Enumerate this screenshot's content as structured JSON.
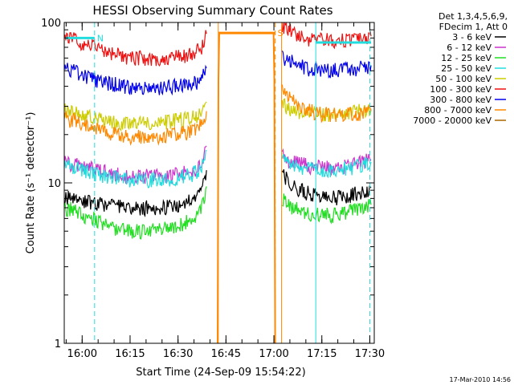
{
  "chart_data": {
    "type": "line",
    "title": "HESSI Observing Summary Count Rates",
    "xlabel": "Start Time (24-Sep-09 15:54:22)",
    "ylabel": "Count Rate (s⁻¹ detector⁻¹)",
    "yscale": "log",
    "ylim": [
      1,
      100
    ],
    "xlim_minutes": [
      0,
      97
    ],
    "x_ticks": [
      {
        "t": 5.6,
        "label": "16:00"
      },
      {
        "t": 20.6,
        "label": "16:15"
      },
      {
        "t": 35.6,
        "label": "16:30"
      },
      {
        "t": 50.6,
        "label": "16:45"
      },
      {
        "t": 65.6,
        "label": "17:00"
      },
      {
        "t": 80.6,
        "label": "17:15"
      },
      {
        "t": 95.6,
        "label": "17:30"
      }
    ],
    "y_ticks": [
      {
        "v": 1,
        "label": "1"
      },
      {
        "v": 10,
        "label": "10"
      },
      {
        "v": 100,
        "label": "100"
      }
    ],
    "legend": {
      "header": [
        "Det 1,3,4,5,6,9,",
        "FDecim 1, Att 0"
      ],
      "position": "top-right",
      "entries": [
        {
          "name": "3 - 6 keV",
          "color": "#000000"
        },
        {
          "name": "6 - 12 keV",
          "color": "#cc33cc"
        },
        {
          "name": "12 - 25 keV",
          "color": "#22dd22"
        },
        {
          "name": "25 - 50 keV",
          "color": "#22dddd"
        },
        {
          "name": "50 - 100 keV",
          "color": "#cccc00"
        },
        {
          "name": "100 - 300 keV",
          "color": "#ee1111"
        },
        {
          "name": "300 - 800 keV",
          "color": "#0000ee"
        },
        {
          "name": "800 - 7000 keV",
          "color": "#ff8800"
        },
        {
          "name": "7000 - 20000 keV",
          "color": "#aa6600"
        }
      ]
    },
    "series": [
      {
        "name": "3 - 6 keV",
        "color": "#000000",
        "segments": [
          {
            "x": [
              0,
              3,
              6,
              10,
              15,
              20,
              25,
              30,
              35,
              40,
              43,
              44.5
            ],
            "y": [
              8.2,
              8.0,
              7.8,
              7.5,
              7.2,
              7.0,
              7.0,
              7.0,
              7.2,
              7.8,
              9.0,
              12
            ]
          },
          {
            "x": [
              68.2,
              70,
              73,
              76,
              80,
              84,
              88,
              92,
              96
            ],
            "y": [
              12,
              10,
              9.3,
              8.7,
              8.3,
              8.1,
              8.2,
              8.7,
              9.3
            ]
          }
        ]
      },
      {
        "name": "6 - 12 keV",
        "color": "#cc33cc",
        "segments": [
          {
            "x": [
              0,
              3,
              6,
              10,
              15,
              20,
              25,
              30,
              35,
              40,
              43,
              44.5
            ],
            "y": [
              13.5,
              13,
              12.6,
              12,
              11.5,
              11,
              11,
              11,
              11.2,
              11.8,
              13,
              17
            ]
          },
          {
            "x": [
              68.2,
              70,
              73,
              76,
              80,
              84,
              88,
              92,
              96
            ],
            "y": [
              15,
              14,
              13.3,
              12.8,
              12.5,
              12.3,
              12.6,
              13.3,
              14
            ]
          }
        ]
      },
      {
        "name": "12 - 25 keV",
        "color": "#22dd22",
        "segments": [
          {
            "x": [
              0,
              3,
              6,
              10,
              15,
              20,
              25,
              30,
              35,
              40,
              43,
              44.5
            ],
            "y": [
              7.0,
              6.8,
              6.3,
              5.8,
              5.3,
              5.0,
              5.0,
              5.1,
              5.3,
              5.9,
              7.0,
              9.5
            ]
          },
          {
            "x": [
              68.2,
              70,
              73,
              76,
              80,
              84,
              88,
              92,
              96
            ],
            "y": [
              8.0,
              7.3,
              6.9,
              6.5,
              6.3,
              6.3,
              6.5,
              6.9,
              7.3
            ]
          }
        ]
      },
      {
        "name": "25 - 50 keV",
        "color": "#22dddd",
        "segments": [
          {
            "x": [
              0,
              3,
              6,
              10,
              15,
              20,
              25,
              30,
              35,
              40,
              43,
              44.5
            ],
            "y": [
              13,
              12.5,
              12,
              11.3,
              10.8,
              10.5,
              10.4,
              10.5,
              10.8,
              11.3,
              12.5,
              16
            ]
          },
          {
            "x": [
              68.2,
              70,
              73,
              76,
              80,
              84,
              88,
              92,
              96
            ],
            "y": [
              14,
              13.2,
              12.6,
              12.2,
              12.0,
              12.0,
              12.3,
              12.8,
              13.5
            ]
          }
        ]
      },
      {
        "name": "50 - 100 keV",
        "color": "#cccc00",
        "segments": [
          {
            "x": [
              0,
              3,
              6,
              10,
              15,
              20,
              25,
              30,
              35,
              40,
              43,
              44.5
            ],
            "y": [
              28,
              27.5,
              26.5,
              25,
              24,
              23.5,
              23.5,
              24,
              24.5,
              25.5,
              27,
              32
            ]
          },
          {
            "x": [
              68.2,
              70,
              73,
              76,
              80,
              84,
              88,
              92,
              96
            ],
            "y": [
              31,
              29,
              28,
              27,
              26.5,
              26.5,
              27,
              28,
              29
            ]
          }
        ]
      },
      {
        "name": "100 - 300 keV",
        "color": "#ee1111",
        "segments": [
          {
            "x": [
              0,
              3,
              6,
              10,
              15,
              20,
              25,
              30,
              35,
              40,
              43,
              44.5
            ],
            "y": [
              82,
              79,
              74,
              69,
              64,
              61,
              60,
              60,
              61,
              64,
              69,
              85
            ]
          },
          {
            "x": [
              68.2,
              70,
              73,
              76,
              80,
              84,
              88,
              92,
              96
            ],
            "y": [
              96,
              90,
              84,
              80,
              78,
              77,
              78,
              80,
              82
            ]
          }
        ]
      },
      {
        "name": "300 - 800 keV",
        "color": "#0000ee",
        "segments": [
          {
            "x": [
              0,
              3,
              6,
              10,
              15,
              20,
              25,
              30,
              35,
              40,
              43,
              44.5
            ],
            "y": [
              52,
              50,
              47,
              44,
              41.5,
              40,
              39.5,
              39.5,
              40,
              41.5,
              44,
              52
            ]
          },
          {
            "x": [
              68.2,
              70,
              73,
              76,
              80,
              84,
              88,
              92,
              96
            ],
            "y": [
              62,
              58,
              55,
              52,
              51,
              50.5,
              51,
              52,
              54
            ]
          }
        ]
      },
      {
        "name": "800 - 7000 keV",
        "color": "#ff8800",
        "segments": [
          {
            "x": [
              0,
              3,
              6,
              10,
              15,
              20,
              25,
              30,
              35,
              40,
              43,
              44.5
            ],
            "y": [
              25,
              24.5,
              23.5,
              22,
              20.5,
              19.5,
              19.5,
              19.5,
              20,
              21,
              23,
              28
            ]
          },
          {
            "x": [
              48,
              48.5,
              65.5,
              66
            ],
            "y": [
              1,
              86,
              86,
              1
            ]
          },
          {
            "x": [
              68.2,
              70,
              73,
              76,
              80,
              84,
              88,
              92,
              96
            ],
            "y": [
              37,
              34,
              31,
              28.5,
              27,
              26.5,
              26.5,
              27,
              28
            ]
          }
        ]
      }
    ],
    "vertical_markers": [
      {
        "t": 0,
        "color": "#22dddd",
        "style": "solid"
      },
      {
        "t": 9.5,
        "color": "#22dddd",
        "style": "dashed"
      },
      {
        "t": 48.2,
        "color": "#ff8800",
        "style": "solid"
      },
      {
        "t": 66.0,
        "color": "#ff8800",
        "style": "dashed"
      },
      {
        "t": 68.0,
        "color": "#ff8800",
        "style": "solid"
      },
      {
        "t": 78.7,
        "color": "#22dddd",
        "style": "solid"
      },
      {
        "t": 95.6,
        "color": "#22dddd",
        "style": "dashed"
      }
    ],
    "flag_bars": [
      {
        "x": [
          0.5,
          9.5
        ],
        "y": 80,
        "color": "#22dddd",
        "label": "N"
      },
      {
        "x": [
          48.2,
          66.0
        ],
        "y": 86,
        "color": "#ff8800",
        "label": "S"
      },
      {
        "x": [
          78.7,
          96.0
        ],
        "y": 75,
        "color": "#22dddd",
        "label": ""
      }
    ]
  },
  "footer": {
    "timestamp": "17-Mar-2010 14:56"
  }
}
